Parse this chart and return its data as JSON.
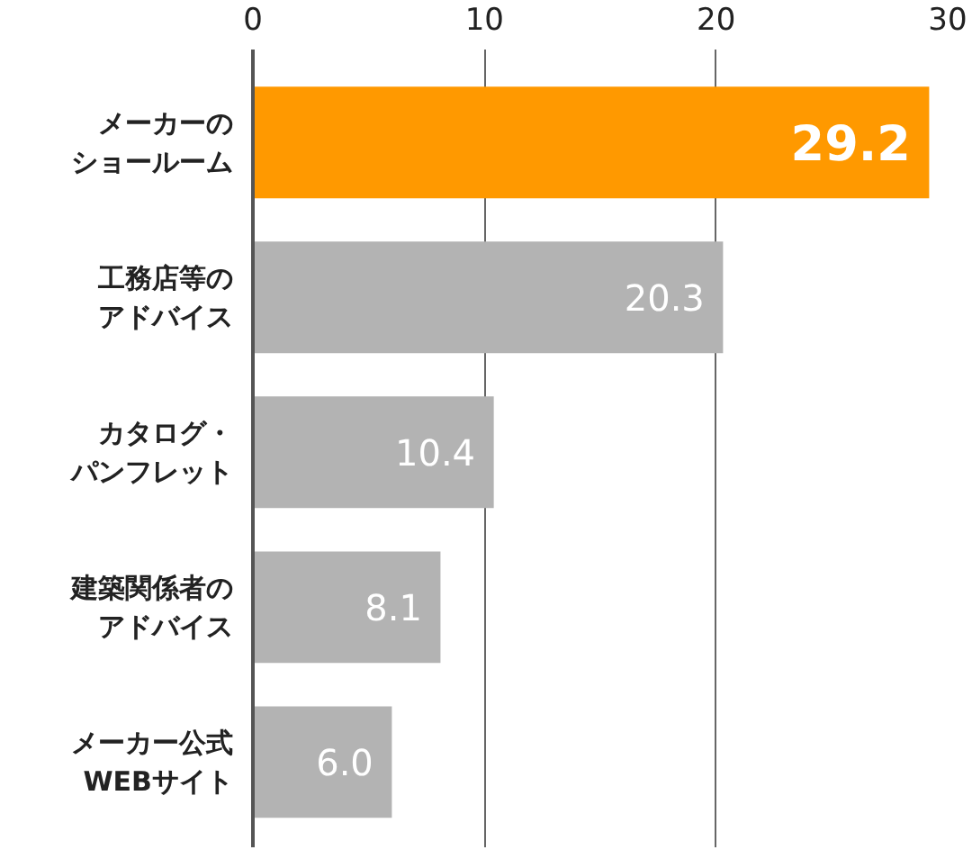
{
  "chart_data": {
    "type": "bar",
    "orientation": "horizontal",
    "categories": [
      "メーカーのショールーム",
      "工務店等のアドバイス",
      "カタログ・パンフレット",
      "建築関係者のアドバイス",
      "メーカー公式WEBサイト"
    ],
    "values": [
      29.2,
      20.3,
      10.4,
      8.1,
      6.0
    ],
    "colors": [
      "#ff9900",
      "#b3b3b3",
      "#b3b3b3",
      "#b3b3b3",
      "#b3b3b3"
    ],
    "value_labels": [
      "29.2",
      "20.3",
      "10.4",
      "8.1",
      "6.0"
    ],
    "xlim": [
      0,
      30
    ],
    "xticks": [
      0,
      10,
      20,
      30
    ],
    "grid": "x"
  }
}
